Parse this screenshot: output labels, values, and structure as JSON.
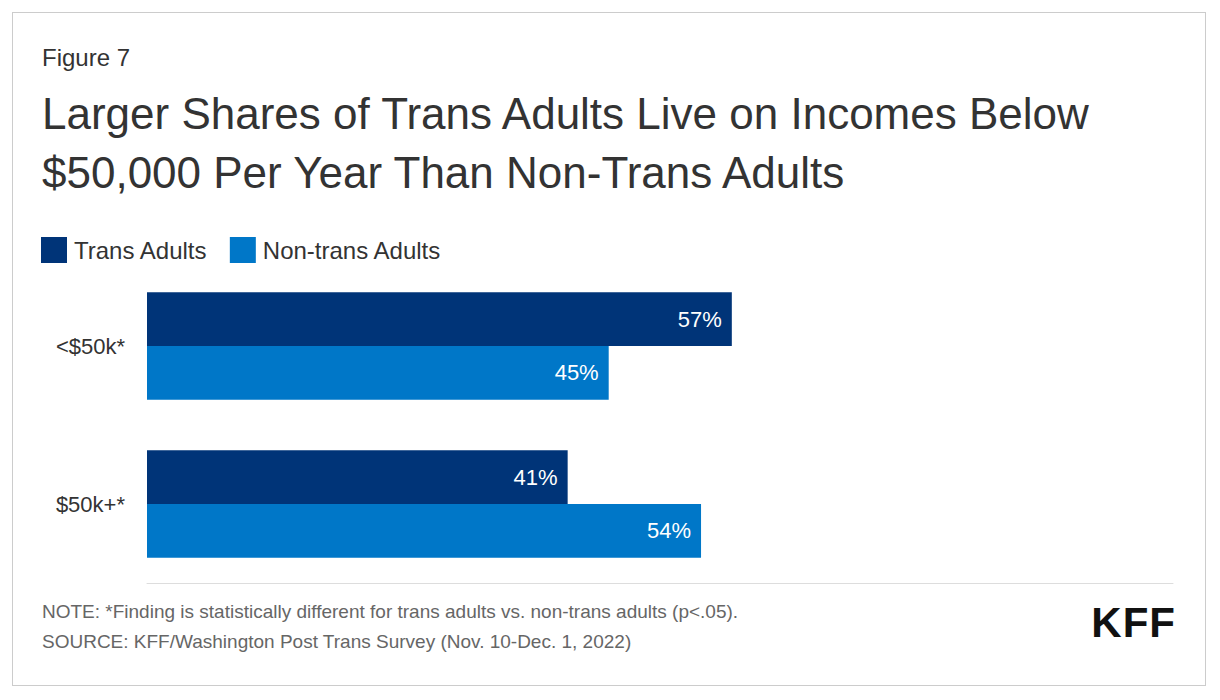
{
  "figure_label": "Figure 7",
  "chart_data": {
    "type": "bar",
    "title": "Larger Shares of Trans Adults Live on Incomes Below $50,000 Per Year Than Non-Trans Adults",
    "categories": [
      "<$50k*",
      "$50k+*"
    ],
    "series": [
      {
        "name": "Trans Adults",
        "color": "#003478",
        "values": [
          57,
          41
        ],
        "value_labels": [
          "57%",
          "41%"
        ]
      },
      {
        "name": "Non-trans Adults",
        "color": "#0077c8",
        "values": [
          45,
          54
        ],
        "value_labels": [
          "45%",
          "54%"
        ]
      }
    ],
    "xlim": [
      0,
      100
    ],
    "orientation": "horizontal",
    "data_labels": true,
    "grid": false,
    "tick_labels": "y",
    "legend": "top-left"
  },
  "notes": [
    "NOTE: *Finding is statistically different for trans adults vs. non-trans adults (p<.05).",
    "SOURCE: KFF/Washington Post Trans Survey (Nov. 10-Dec. 1, 2022)"
  ],
  "logo": "KFF"
}
